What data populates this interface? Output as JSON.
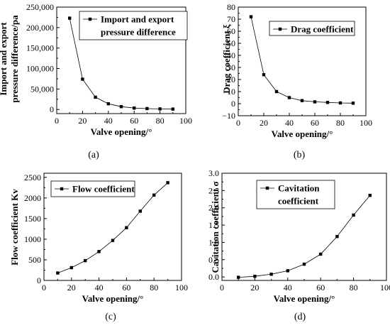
{
  "figure": {
    "panels": [
      {
        "id": "a",
        "caption": "(a)",
        "chart_data": {
          "type": "line",
          "x": [
            10,
            20,
            30,
            40,
            50,
            60,
            70,
            80,
            90
          ],
          "series": [
            {
              "name": "Import and export pressure difference",
              "name_lines": [
                "Import and export",
                "pressure difference"
              ],
              "values": [
                223000,
                74000,
                30000,
                14000,
                7000,
                3500,
                2200,
                1500,
                1000
              ]
            }
          ],
          "xlabel": "Valve opening/°",
          "ylabel_lines": [
            "Import and export",
            "pressure difference/pa"
          ],
          "xlim": [
            0,
            100
          ],
          "ylim": [
            -10000,
            250000
          ],
          "xticks": [
            0,
            20,
            40,
            60,
            80,
            100
          ],
          "yticks": [
            0,
            50000,
            100000,
            150000,
            200000,
            250000
          ],
          "ytick_labels": [
            "0",
            "50,000",
            "100,000",
            "150,000",
            "200,000",
            "250,000"
          ],
          "legend_position": "top-right",
          "grid": false
        }
      },
      {
        "id": "b",
        "caption": "(b)",
        "chart_data": {
          "type": "line",
          "x": [
            10,
            20,
            30,
            40,
            50,
            60,
            70,
            80,
            90
          ],
          "series": [
            {
              "name": "Drag coefficient",
              "name_lines": [
                "Drag coefficient"
              ],
              "values": [
                72,
                24,
                10,
                5,
                2.5,
                1.5,
                1,
                0.6,
                0.4
              ]
            }
          ],
          "xlabel": "Valve opening/°",
          "ylabel_lines": [
            "Drag coefficient ξ"
          ],
          "xlim": [
            0,
            100
          ],
          "ylim": [
            -10,
            80
          ],
          "xticks": [
            0,
            20,
            40,
            60,
            80,
            100
          ],
          "yticks": [
            -10,
            0,
            10,
            20,
            30,
            40,
            50,
            60,
            70,
            80
          ],
          "ytick_labels": [
            "−10",
            "0",
            "10",
            "20",
            "30",
            "40",
            "50",
            "60",
            "70",
            "80"
          ],
          "legend_position": "top-right",
          "grid": false
        }
      },
      {
        "id": "c",
        "caption": "(c)",
        "chart_data": {
          "type": "line",
          "x": [
            10,
            20,
            30,
            40,
            50,
            60,
            70,
            80,
            90
          ],
          "series": [
            {
              "name": "Flow coefficient",
              "name_lines": [
                "Flow coefficient"
              ],
              "values": [
                180,
                310,
                480,
                700,
                970,
                1280,
                1680,
                2070,
                2370
              ]
            }
          ],
          "xlabel": "Valve opening/°",
          "ylabel_lines": [
            "Flow coefficient Kv"
          ],
          "xlim": [
            0,
            100
          ],
          "ylim": [
            0,
            2600
          ],
          "xticks": [
            0,
            20,
            40,
            60,
            80,
            100
          ],
          "yticks": [
            0,
            500,
            1000,
            1500,
            2000,
            2500
          ],
          "ytick_labels": [
            "0",
            "500",
            "1000",
            "1500",
            "2000",
            "2500"
          ],
          "legend_position": "top-left",
          "grid": false
        }
      },
      {
        "id": "d",
        "caption": "(d)",
        "chart_data": {
          "type": "line",
          "x": [
            10,
            20,
            30,
            40,
            50,
            60,
            70,
            80,
            90
          ],
          "series": [
            {
              "name": "Cavitation coefficient",
              "name_lines": [
                "Cavitation",
                "coefficient"
              ],
              "values": [
                -0.01,
                0.02,
                0.08,
                0.18,
                0.37,
                0.66,
                1.17,
                1.79,
                2.36
              ]
            }
          ],
          "xlabel": "Valve opening/°",
          "ylabel_lines": [
            "Cavitation coefficient σ"
          ],
          "xlim": [
            0,
            100
          ],
          "ylim": [
            -0.1,
            3.0
          ],
          "xticks": [
            0,
            20,
            40,
            60,
            80,
            100
          ],
          "yticks": [
            0.0,
            0.5,
            1.0,
            1.5,
            2.0,
            2.5,
            3.0
          ],
          "ytick_labels": [
            "0.0",
            "0.5",
            "1.0",
            "1.5",
            "2.0",
            "2.5",
            "3.0"
          ],
          "legend_position": "top-left",
          "grid": false
        }
      }
    ]
  }
}
